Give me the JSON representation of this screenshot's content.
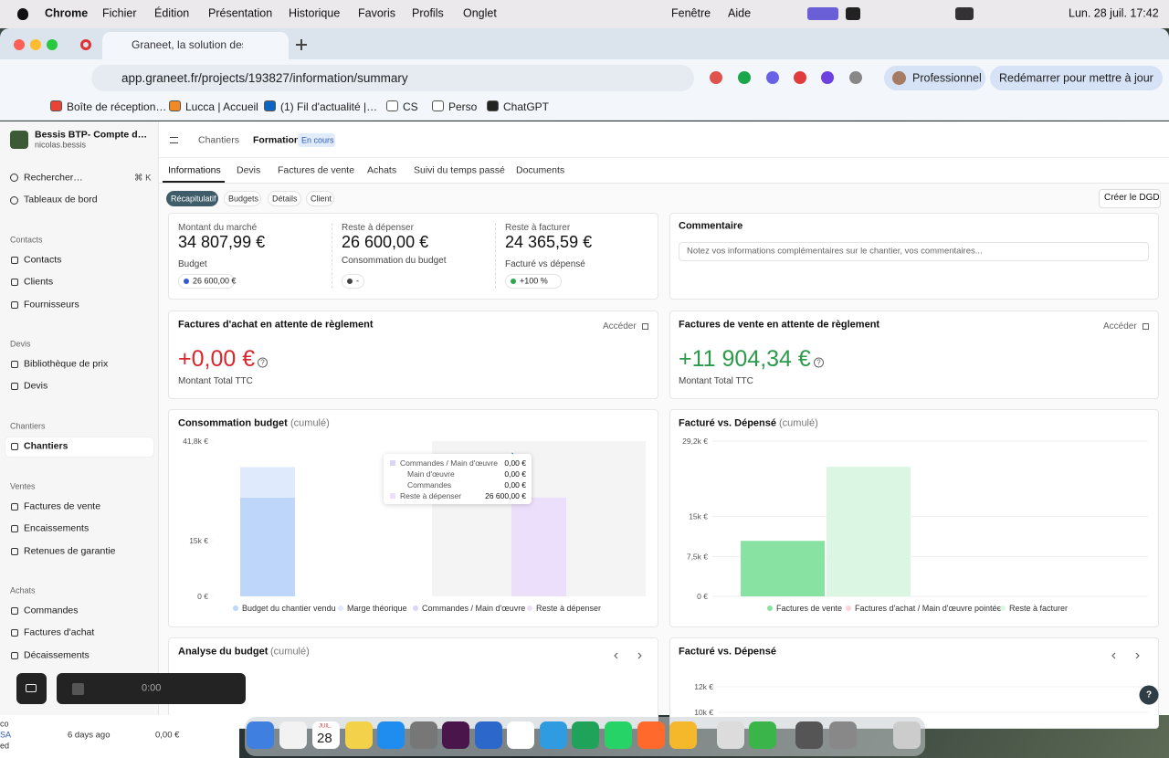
{
  "menubar": {
    "app": "Chrome",
    "menus": [
      "Fichier",
      "Édition",
      "Présentation",
      "Historique",
      "Favoris",
      "Profils",
      "Onglet",
      "Fenêtre",
      "Aide"
    ],
    "clock": "Lun. 28 juil.  17:42"
  },
  "browser": {
    "tab": "Graneet, la solution des m",
    "url": "app.graneet.fr/projects/193827/information/summary",
    "profile": "Professionnel",
    "update": "Redémarrer pour mettre à jour",
    "bookmarks": [
      "Boîte de réception…",
      "Lucca | Accueil",
      "(1) Fil d'actualité |…",
      "CS",
      "Perso",
      "ChatGPT"
    ]
  },
  "sidebar": {
    "company": "Bessis BTP- Compte d…",
    "user": "nicolas.bessis",
    "search": "Rechercher…",
    "shortcut": "⌘ K",
    "dashboards": "Tableaux de bord",
    "sections": [
      {
        "title": "Contacts",
        "items": [
          "Contacts",
          "Clients",
          "Fournisseurs"
        ]
      },
      {
        "title": "Devis",
        "items": [
          "Bibliothèque de prix",
          "Devis"
        ]
      },
      {
        "title": "Chantiers",
        "items": [
          "Chantiers"
        ]
      },
      {
        "title": "Ventes",
        "items": [
          "Factures de vente",
          "Encaissements",
          "Retenues de garantie"
        ]
      },
      {
        "title": "Achats",
        "items": [
          "Commandes",
          "Factures d'achat",
          "Décaissements"
        ]
      }
    ]
  },
  "header": {
    "breadcrumb": "Chantiers",
    "current": "Formation",
    "status": "En cours",
    "tabs": [
      "Informations",
      "Devis",
      "Factures de vente",
      "Achats",
      "Suivi du temps passé",
      "Documents"
    ],
    "subtabs": [
      "Récapitulatif",
      "Budgets",
      "Détails",
      "Client"
    ],
    "action": "Créer le DGD"
  },
  "summary": [
    {
      "label": "Montant du marché",
      "value": "34 807,99 €",
      "sub": "Budget",
      "badge": "26 600,00 €"
    },
    {
      "label": "Reste à dépenser",
      "value": "26 600,00 €",
      "sub": "Consommation du budget",
      "badge": "-"
    },
    {
      "label": "Reste à facturer",
      "value": "24 365,59 €",
      "sub": "Facturé vs dépensé",
      "badge": "+100 %"
    }
  ],
  "comment": {
    "title": "Commentaire",
    "placeholder": "Notez vos informations complémentaires sur le chantier, vos commentaires..."
  },
  "purchase_invoices": {
    "title": "Factures d'achat en attente de règlement",
    "link": "Accéder",
    "amount": "+0,00 €",
    "caption": "Montant Total TTC"
  },
  "sales_invoices": {
    "title": "Factures de vente en attente de règlement",
    "link": "Accéder",
    "amount": "+11 904,34 €",
    "caption": "Montant Total TTC"
  },
  "help": "?",
  "budget_chart": {
    "type": "bar",
    "title": "Consommation budget",
    "qualifier": "(cumulé)",
    "stacked": true,
    "grid": false,
    "categories": [
      null,
      null
    ],
    "ylim": [
      0,
      41800
    ],
    "yticks": [
      {
        "value": 0,
        "label": "0 €"
      },
      {
        "value": 15000,
        "label": "15k €"
      },
      {
        "value": 41800,
        "label": "41,8k €"
      }
    ],
    "series": [
      {
        "name": "Budget du chantier vendu",
        "color": "#bdd6fa",
        "values": [
          26600,
          null
        ]
      },
      {
        "name": "Marge théorique",
        "color": "#dfebfc",
        "values": [
          8207.99,
          null
        ]
      },
      {
        "name": "Commandes / Main d'œuvre",
        "color": "#d9d6f7",
        "values": [
          null,
          0
        ]
      },
      {
        "name": "Reste à dépenser",
        "color": "#ecdffb",
        "values": [
          null,
          26600
        ]
      }
    ],
    "tooltip": [
      {
        "label": "Commandes / Main d'œuvre",
        "value": "0,00 €"
      },
      {
        "label": "Main d'œuvre",
        "value": "0,00 €"
      },
      {
        "label": "Commandes",
        "value": "0,00 €"
      },
      {
        "label": "Reste à dépenser",
        "value": "26 600,00 €"
      }
    ]
  },
  "billing_chart": {
    "type": "bar",
    "title": "Facturé vs. Dépensé",
    "qualifier": "(cumulé)",
    "stacked": true,
    "grid": true,
    "categories": [
      null,
      null
    ],
    "ylim": [
      0,
      29200
    ],
    "yticks": [
      {
        "value": 0,
        "label": "0 €"
      },
      {
        "value": 7500,
        "label": "7,5k €"
      },
      {
        "value": 15000,
        "label": "15k €"
      },
      {
        "value": 29200,
        "label": "29,2k €"
      }
    ],
    "series": [
      {
        "name": "Factures de vente",
        "color": "#88e2a2",
        "values": [
          10442.4,
          null
        ]
      },
      {
        "name": "Factures d'achat / Main d'œuvre pointée",
        "color": "#fbd3d8",
        "values": [
          null,
          0
        ]
      },
      {
        "name": "Reste à facturer",
        "color": "#dbf7e4",
        "values": [
          null,
          24365.59
        ]
      }
    ]
  },
  "analysis": {
    "title": "Analyse du budget",
    "qualifier": "(cumulé)"
  },
  "billing_bars": {
    "title": "Facturé vs. Dépensé",
    "yticks": [
      {
        "value": 12000,
        "label": "12k €"
      },
      {
        "value": 10000,
        "label": "10k €"
      }
    ]
  },
  "recorder": {
    "time": "0:00"
  },
  "dock": {
    "month": "JUIL.",
    "day": "28"
  },
  "background_window": {
    "fragments": [
      "co",
      "SA",
      "ed"
    ],
    "age": "6 days ago",
    "amount": "0,00 €"
  }
}
